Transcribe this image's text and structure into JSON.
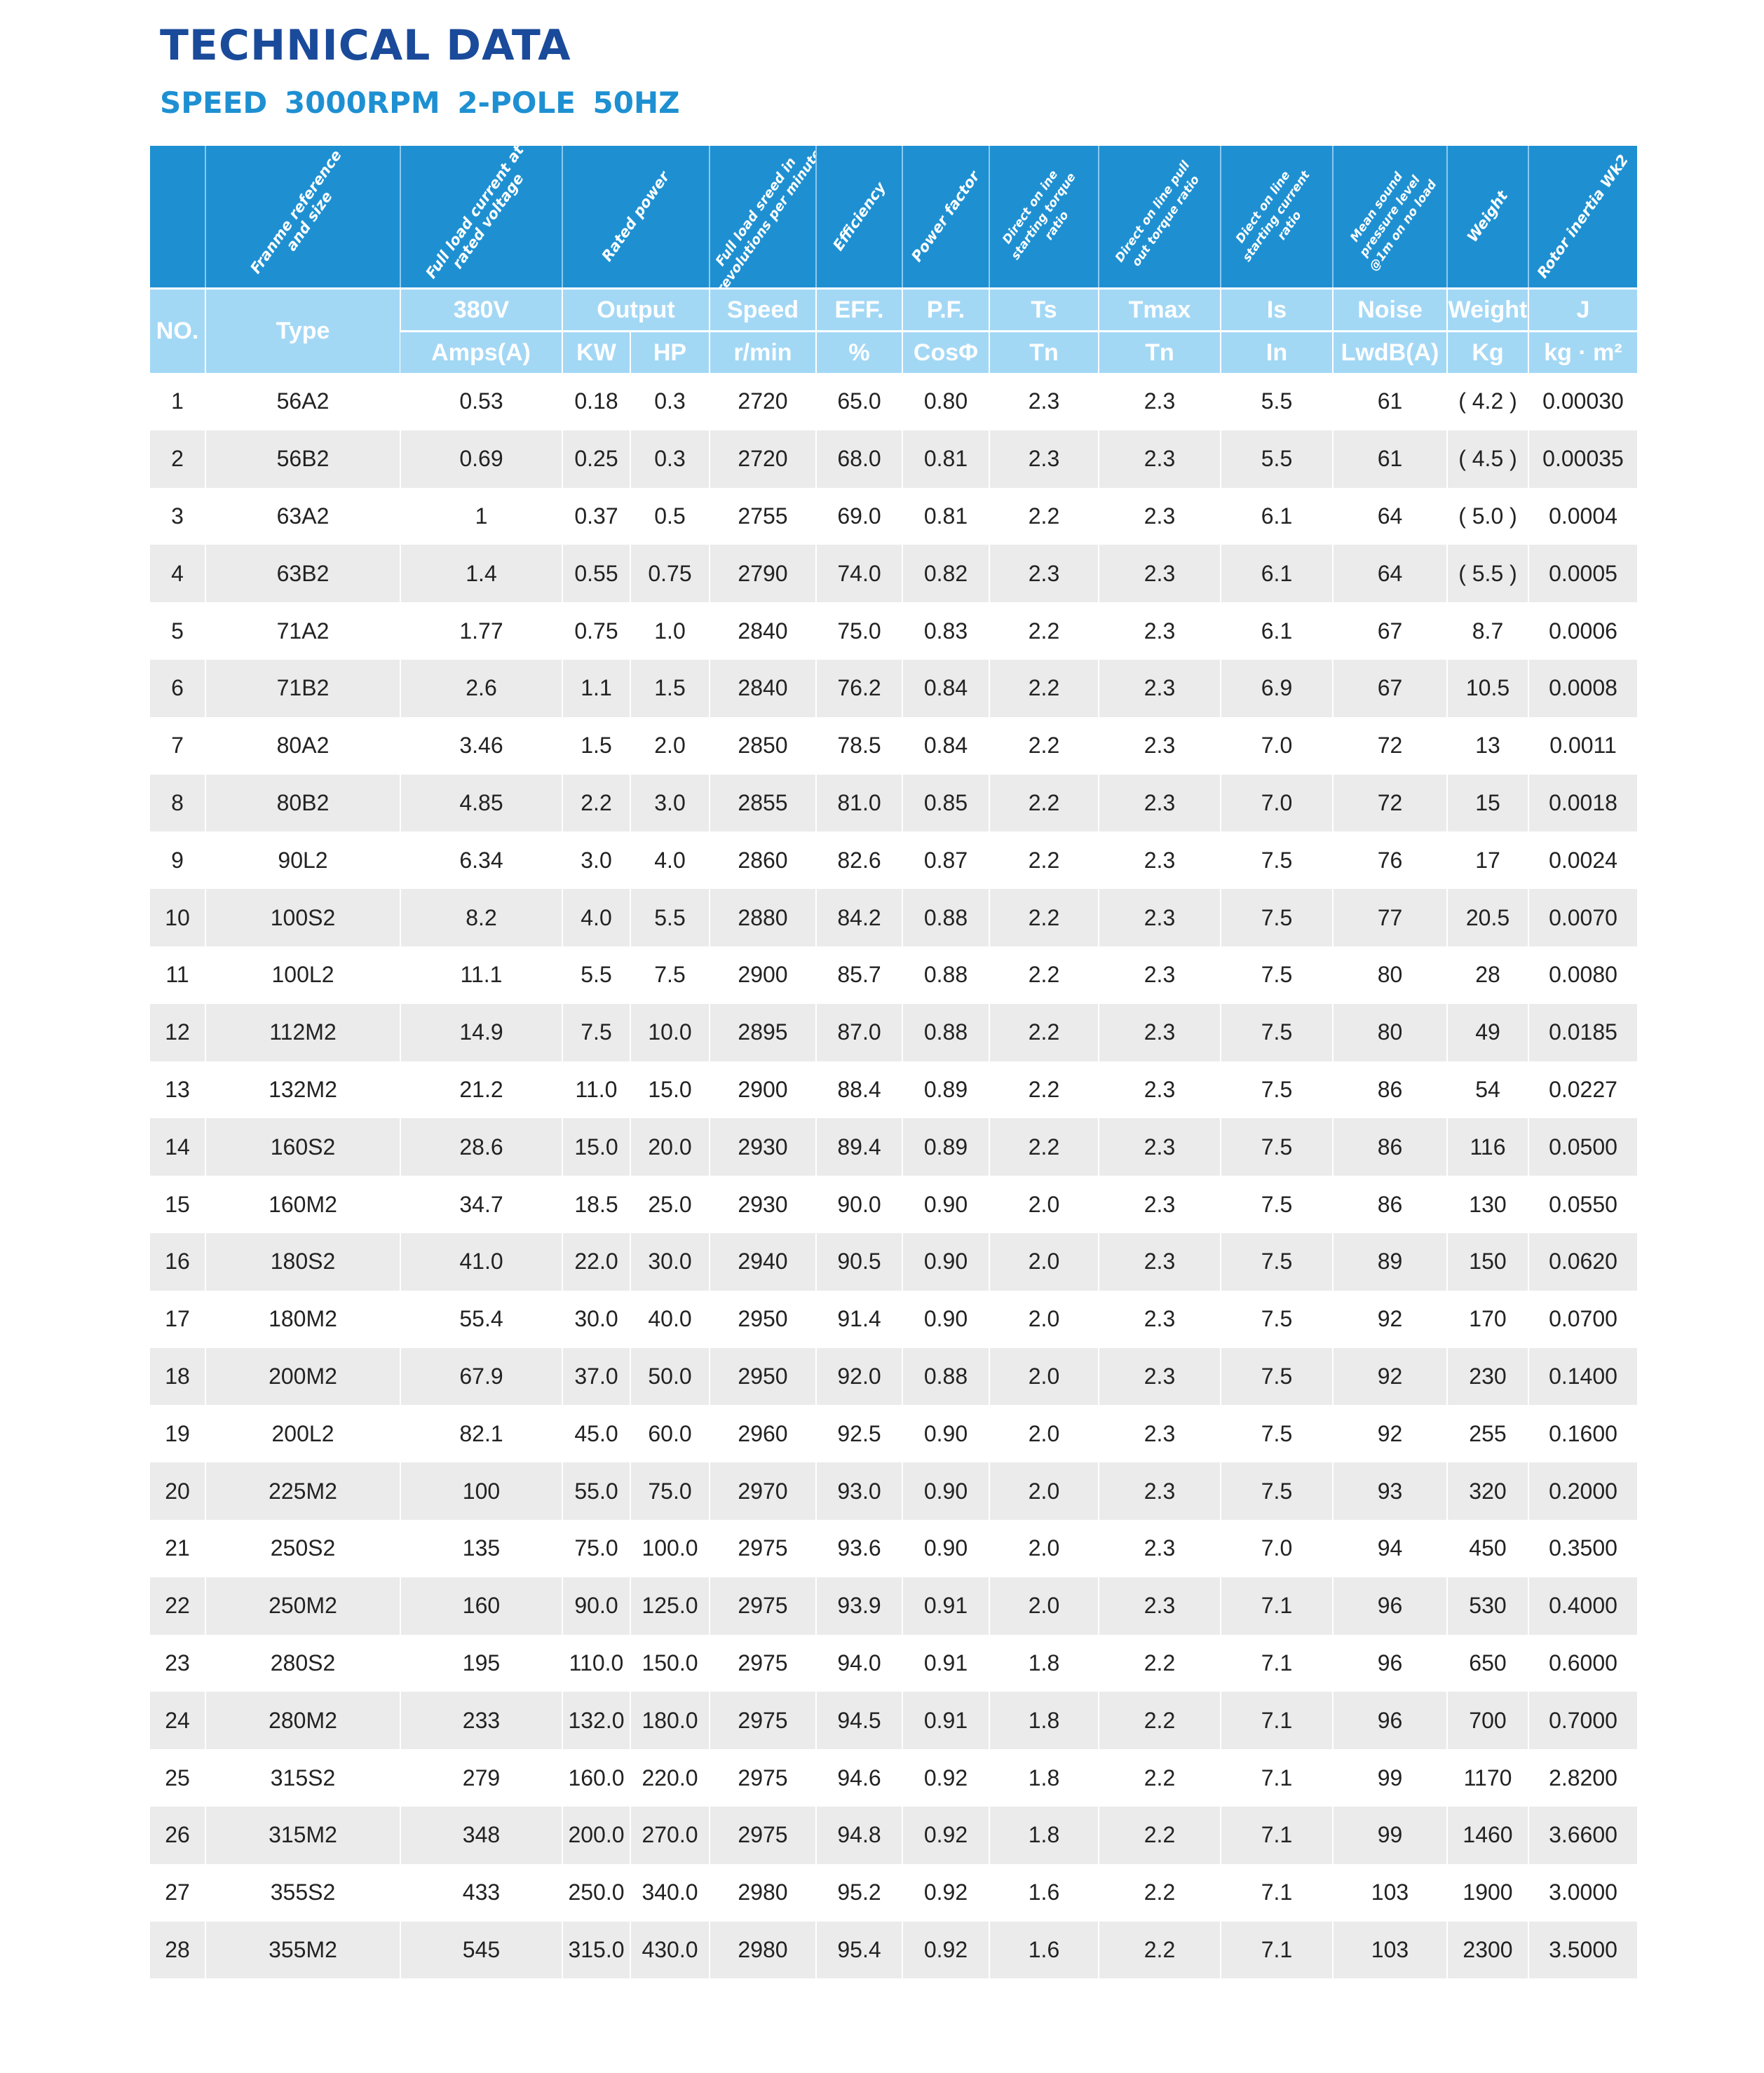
{
  "title": "TECHNICAL DATA",
  "subtitle": "SPEED  3000RPM  2-POLE  50HZ",
  "header": {
    "descriptions": [
      "",
      "Franme reference and size",
      "Full load current at rated voltage",
      "Rated power",
      "Full load sreed in revolutions per minute",
      "Efficiency",
      "Power factor",
      "Direct on ine starting torque ratio",
      "Direct on line pull out torque ratio",
      "Diect on line starting current ratio",
      "Mean sound pressure level @1m on no load",
      "Weight",
      "Rotor inertia Wk2"
    ],
    "no": "NO.",
    "type": "Type",
    "row1": [
      "380V",
      "Output",
      "Speed",
      "EFF.",
      "P.F.",
      "Ts",
      "Tmax",
      "Is",
      "Noise",
      "Weight",
      "J"
    ],
    "row2": [
      "Amps(A)",
      "KW",
      "HP",
      "r/min",
      "%",
      "CosΦ",
      "Tn",
      "Tn",
      "In",
      "LwdB(A)",
      "Kg",
      "kg · m²"
    ]
  },
  "rows": [
    [
      "1",
      "56A2",
      "0.53",
      "0.18",
      "0.3",
      "2720",
      "65.0",
      "0.80",
      "2.3",
      "2.3",
      "5.5",
      "61",
      "( 4.2 )",
      "0.00030"
    ],
    [
      "2",
      "56B2",
      "0.69",
      "0.25",
      "0.3",
      "2720",
      "68.0",
      "0.81",
      "2.3",
      "2.3",
      "5.5",
      "61",
      "( 4.5 )",
      "0.00035"
    ],
    [
      "3",
      "63A2",
      "1",
      "0.37",
      "0.5",
      "2755",
      "69.0",
      "0.81",
      "2.2",
      "2.3",
      "6.1",
      "64",
      "( 5.0 )",
      "0.0004"
    ],
    [
      "4",
      "63B2",
      "1.4",
      "0.55",
      "0.75",
      "2790",
      "74.0",
      "0.82",
      "2.3",
      "2.3",
      "6.1",
      "64",
      "( 5.5 )",
      "0.0005"
    ],
    [
      "5",
      "71A2",
      "1.77",
      "0.75",
      "1.0",
      "2840",
      "75.0",
      "0.83",
      "2.2",
      "2.3",
      "6.1",
      "67",
      "8.7",
      "0.0006"
    ],
    [
      "6",
      "71B2",
      "2.6",
      "1.1",
      "1.5",
      "2840",
      "76.2",
      "0.84",
      "2.2",
      "2.3",
      "6.9",
      "67",
      "10.5",
      "0.0008"
    ],
    [
      "7",
      "80A2",
      "3.46",
      "1.5",
      "2.0",
      "2850",
      "78.5",
      "0.84",
      "2.2",
      "2.3",
      "7.0",
      "72",
      "13",
      "0.0011"
    ],
    [
      "8",
      "80B2",
      "4.85",
      "2.2",
      "3.0",
      "2855",
      "81.0",
      "0.85",
      "2.2",
      "2.3",
      "7.0",
      "72",
      "15",
      "0.0018"
    ],
    [
      "9",
      "90L2",
      "6.34",
      "3.0",
      "4.0",
      "2860",
      "82.6",
      "0.87",
      "2.2",
      "2.3",
      "7.5",
      "76",
      "17",
      "0.0024"
    ],
    [
      "10",
      "100S2",
      "8.2",
      "4.0",
      "5.5",
      "2880",
      "84.2",
      "0.88",
      "2.2",
      "2.3",
      "7.5",
      "77",
      "20.5",
      "0.0070"
    ],
    [
      "11",
      "100L2",
      "11.1",
      "5.5",
      "7.5",
      "2900",
      "85.7",
      "0.88",
      "2.2",
      "2.3",
      "7.5",
      "80",
      "28",
      "0.0080"
    ],
    [
      "12",
      "112M2",
      "14.9",
      "7.5",
      "10.0",
      "2895",
      "87.0",
      "0.88",
      "2.2",
      "2.3",
      "7.5",
      "80",
      "49",
      "0.0185"
    ],
    [
      "13",
      "132M2",
      "21.2",
      "11.0",
      "15.0",
      "2900",
      "88.4",
      "0.89",
      "2.2",
      "2.3",
      "7.5",
      "86",
      "54",
      "0.0227"
    ],
    [
      "14",
      "160S2",
      "28.6",
      "15.0",
      "20.0",
      "2930",
      "89.4",
      "0.89",
      "2.2",
      "2.3",
      "7.5",
      "86",
      "116",
      "0.0500"
    ],
    [
      "15",
      "160M2",
      "34.7",
      "18.5",
      "25.0",
      "2930",
      "90.0",
      "0.90",
      "2.0",
      "2.3",
      "7.5",
      "86",
      "130",
      "0.0550"
    ],
    [
      "16",
      "180S2",
      "41.0",
      "22.0",
      "30.0",
      "2940",
      "90.5",
      "0.90",
      "2.0",
      "2.3",
      "7.5",
      "89",
      "150",
      "0.0620"
    ],
    [
      "17",
      "180M2",
      "55.4",
      "30.0",
      "40.0",
      "2950",
      "91.4",
      "0.90",
      "2.0",
      "2.3",
      "7.5",
      "92",
      "170",
      "0.0700"
    ],
    [
      "18",
      "200M2",
      "67.9",
      "37.0",
      "50.0",
      "2950",
      "92.0",
      "0.88",
      "2.0",
      "2.3",
      "7.5",
      "92",
      "230",
      "0.1400"
    ],
    [
      "19",
      "200L2",
      "82.1",
      "45.0",
      "60.0",
      "2960",
      "92.5",
      "0.90",
      "2.0",
      "2.3",
      "7.5",
      "92",
      "255",
      "0.1600"
    ],
    [
      "20",
      "225M2",
      "100",
      "55.0",
      "75.0",
      "2970",
      "93.0",
      "0.90",
      "2.0",
      "2.3",
      "7.5",
      "93",
      "320",
      "0.2000"
    ],
    [
      "21",
      "250S2",
      "135",
      "75.0",
      "100.0",
      "2975",
      "93.6",
      "0.90",
      "2.0",
      "2.3",
      "7.0",
      "94",
      "450",
      "0.3500"
    ],
    [
      "22",
      "250M2",
      "160",
      "90.0",
      "125.0",
      "2975",
      "93.9",
      "0.91",
      "2.0",
      "2.3",
      "7.1",
      "96",
      "530",
      "0.4000"
    ],
    [
      "23",
      "280S2",
      "195",
      "110.0",
      "150.0",
      "2975",
      "94.0",
      "0.91",
      "1.8",
      "2.2",
      "7.1",
      "96",
      "650",
      "0.6000"
    ],
    [
      "24",
      "280M2",
      "233",
      "132.0",
      "180.0",
      "2975",
      "94.5",
      "0.91",
      "1.8",
      "2.2",
      "7.1",
      "96",
      "700",
      "0.7000"
    ],
    [
      "25",
      "315S2",
      "279",
      "160.0",
      "220.0",
      "2975",
      "94.6",
      "0.92",
      "1.8",
      "2.2",
      "7.1",
      "99",
      "1170",
      "2.8200"
    ],
    [
      "26",
      "315M2",
      "348",
      "200.0",
      "270.0",
      "2975",
      "94.8",
      "0.92",
      "1.8",
      "2.2",
      "7.1",
      "99",
      "1460",
      "3.6600"
    ],
    [
      "27",
      "355S2",
      "433",
      "250.0",
      "340.0",
      "2980",
      "95.2",
      "0.92",
      "1.6",
      "2.2",
      "7.1",
      "103",
      "1900",
      "3.0000"
    ],
    [
      "28",
      "355M2",
      "545",
      "315.0",
      "430.0",
      "2980",
      "95.4",
      "0.92",
      "1.6",
      "2.2",
      "7.1",
      "103",
      "2300",
      "3.5000"
    ]
  ],
  "colors": {
    "title": "#1a4a9a",
    "subtitle": "#1e90d2",
    "header_dark": "#1e90d2",
    "header_light": "#a3d8f5",
    "row_alt": "#ebebeb"
  }
}
